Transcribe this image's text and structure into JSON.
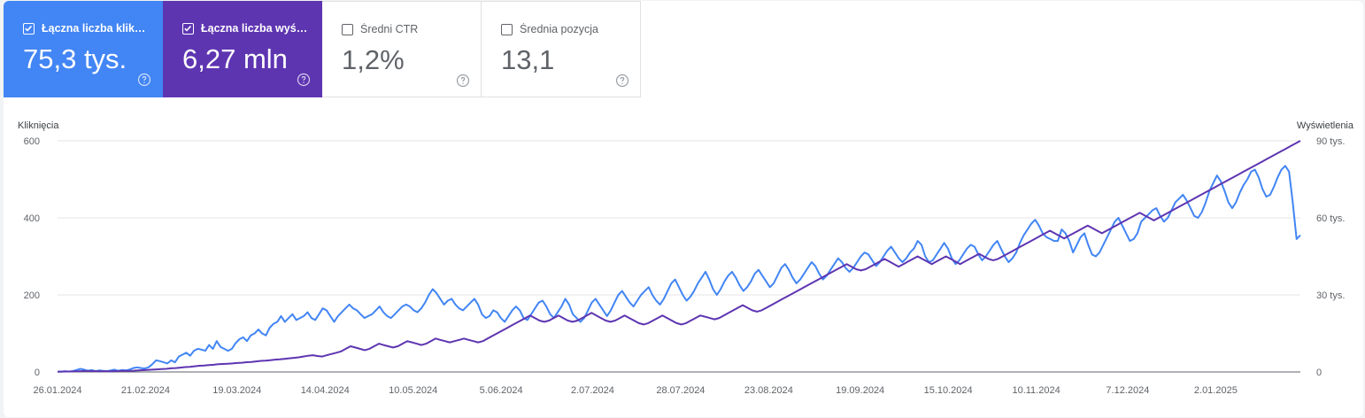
{
  "metrics": [
    {
      "id": "clicks",
      "label": "Łączna liczba kliknięć",
      "value": "75,3 tys.",
      "checked": true,
      "color": "#4285f4"
    },
    {
      "id": "impressions",
      "label": "Łączna liczba wyświetleń",
      "value": "6,27 mln",
      "checked": true,
      "color": "#5e35b1"
    },
    {
      "id": "ctr",
      "label": "Średni CTR",
      "value": "1,2%",
      "checked": false
    },
    {
      "id": "position",
      "label": "Średnia pozycja",
      "value": "13,1",
      "checked": false
    }
  ],
  "icons": {
    "checkbox": "checkbox-icon",
    "help": "help-circle-icon"
  },
  "chart_data": {
    "type": "line",
    "ylabel_left": "Kliknięcia",
    "ylabel_right": "Wyświetlenia",
    "y_left_ticks": [
      "0",
      "200",
      "400",
      "600"
    ],
    "y_right_ticks": [
      "0",
      "30 tys.",
      "60 tys.",
      "90 tys."
    ],
    "ylim_left": [
      0,
      600
    ],
    "ylim_right": [
      0,
      90000
    ],
    "x_ticks": [
      "26.01.2024",
      "21.02.2024",
      "19.03.2024",
      "14.04.2024",
      "10.05.2024",
      "5.06.2024",
      "2.07.2024",
      "28.07.2024",
      "23.08.2024",
      "19.09.2024",
      "15.10.2024",
      "10.11.2024",
      "7.12.2024",
      "2.01.2025"
    ],
    "x_start": "26.01.2024",
    "x_end": "27.01.2025",
    "grid": true,
    "series": [
      {
        "name": "Kliknięcia",
        "axis": "left",
        "color": "#4285f4",
        "values": [
          1,
          1,
          2,
          1,
          2,
          5,
          8,
          6,
          3,
          5,
          2,
          4,
          3,
          2,
          4,
          6,
          3,
          5,
          4,
          6,
          10,
          12,
          10,
          9,
          12,
          20,
          30,
          28,
          25,
          22,
          30,
          25,
          40,
          45,
          50,
          42,
          55,
          60,
          58,
          55,
          70,
          60,
          80,
          65,
          60,
          55,
          60,
          75,
          85,
          90,
          80,
          95,
          100,
          110,
          100,
          95,
          115,
          125,
          130,
          145,
          130,
          140,
          150,
          135,
          140,
          145,
          155,
          140,
          135,
          150,
          165,
          160,
          145,
          130,
          145,
          155,
          165,
          175,
          165,
          160,
          150,
          140,
          145,
          150,
          160,
          170,
          155,
          145,
          140,
          150,
          160,
          170,
          175,
          170,
          160,
          155,
          165,
          180,
          200,
          215,
          205,
          190,
          175,
          185,
          190,
          175,
          165,
          160,
          170,
          180,
          190,
          175,
          150,
          140,
          145,
          160,
          155,
          140,
          130,
          145,
          160,
          170,
          160,
          140,
          135,
          150,
          165,
          180,
          185,
          170,
          150,
          140,
          155,
          170,
          190,
          175,
          150,
          140,
          130,
          140,
          160,
          180,
          190,
          175,
          160,
          145,
          160,
          180,
          200,
          210,
          195,
          180,
          170,
          185,
          200,
          210,
          220,
          200,
          185,
          175,
          190,
          210,
          230,
          240,
          220,
          200,
          185,
          195,
          210,
          230,
          245,
          260,
          240,
          215,
          200,
          215,
          235,
          250,
          260,
          245,
          225,
          210,
          220,
          235,
          255,
          265,
          250,
          235,
          220,
          230,
          250,
          270,
          280,
          265,
          245,
          230,
          240,
          255,
          270,
          285,
          275,
          255,
          240,
          250,
          265,
          280,
          295,
          285,
          270,
          260,
          270,
          285,
          300,
          310,
          305,
          290,
          275,
          285,
          300,
          315,
          325,
          310,
          295,
          285,
          295,
          310,
          320,
          340,
          330,
          300,
          285,
          290,
          305,
          320,
          335,
          320,
          295,
          280,
          290,
          305,
          320,
          330,
          325,
          305,
          290,
          300,
          315,
          330,
          340,
          320,
          300,
          285,
          295,
          310,
          335,
          355,
          370,
          385,
          395,
          380,
          360,
          350,
          345,
          340,
          340,
          370,
          360,
          340,
          310,
          330,
          350,
          360,
          330,
          305,
          300,
          310,
          330,
          350,
          370,
          390,
          400,
          380,
          360,
          340,
          345,
          360,
          390,
          400,
          410,
          420,
          425,
          405,
          390,
          400,
          420,
          440,
          450,
          460,
          445,
          425,
          405,
          400,
          415,
          440,
          470,
          490,
          510,
          495,
          470,
          440,
          425,
          440,
          465,
          485,
          500,
          520,
          525,
          505,
          475,
          455,
          460,
          480,
          505,
          525,
          535,
          520,
          440,
          345,
          355
        ],
        "note_values": "approximate daily values read from the plot"
      },
      {
        "name": "Wyświetlenia",
        "axis": "right",
        "color": "#5e35b1",
        "values": [
          100,
          150,
          180,
          200,
          250,
          300,
          400,
          350,
          300,
          320,
          300,
          280,
          300,
          350,
          400,
          450,
          500,
          600,
          700,
          800,
          900,
          1000,
          1100,
          1200,
          1400,
          1500,
          1700,
          1900,
          2000,
          2200,
          2400,
          2500,
          2700,
          2800,
          3000,
          3100,
          3200,
          3300,
          3500,
          3600,
          3800,
          3900,
          4100,
          4300,
          4400,
          4600,
          4800,
          4900,
          5100,
          5300,
          5500,
          5700,
          6000,
          6300,
          6500,
          6200,
          6000,
          6500,
          7000,
          7500,
          8000,
          9000,
          10000,
          9500,
          9000,
          8500,
          9000,
          10000,
          11000,
          10500,
          10000,
          9500,
          10000,
          11000,
          12000,
          11500,
          11000,
          10500,
          11000,
          12000,
          13000,
          12500,
          12000,
          11500,
          12000,
          12500,
          13000,
          12500,
          12000,
          11500,
          12000,
          13000,
          14000,
          15000,
          16000,
          17000,
          18000,
          19000,
          20000,
          21000,
          22000,
          21000,
          20000,
          19500,
          20000,
          21000,
          22000,
          21000,
          20000,
          19500,
          20000,
          21000,
          22000,
          23000,
          22000,
          21000,
          20000,
          19500,
          20000,
          21000,
          22000,
          21000,
          20000,
          19000,
          18500,
          19000,
          20000,
          21000,
          22000,
          21000,
          20000,
          19000,
          18500,
          19000,
          20000,
          21000,
          22000,
          21500,
          21000,
          20500,
          21000,
          22000,
          23000,
          24000,
          25000,
          26000,
          25000,
          24000,
          23500,
          24000,
          25000,
          26000,
          27000,
          28000,
          29000,
          30000,
          31000,
          32000,
          33000,
          34000,
          35000,
          36000,
          37000,
          38000,
          39000,
          40000,
          41000,
          42000,
          41000,
          40000,
          39500,
          40000,
          41000,
          42000,
          43000,
          44000,
          43000,
          42000,
          41000,
          42000,
          43000,
          44000,
          45000,
          44000,
          43000,
          42000,
          43000,
          44000,
          45000,
          44000,
          43000,
          42000,
          43000,
          44000,
          45000,
          46000,
          45000,
          44000,
          43500,
          44000,
          45000,
          46000,
          47000,
          48000,
          49000,
          50000,
          51000,
          52000,
          53000,
          54000,
          55000,
          54000,
          53000,
          52000,
          53000,
          54000,
          55000,
          56000,
          57000,
          56000,
          55000,
          54000,
          55000,
          56000,
          57000,
          58000,
          59000,
          60000,
          61000,
          62000,
          61000,
          60000,
          59000,
          60000,
          61000,
          62000,
          63000,
          64000,
          65000,
          66000,
          67000,
          68000,
          69000,
          70000,
          71000,
          72000,
          73000,
          74000,
          75000,
          76000,
          77000,
          78000,
          79000,
          80000,
          81000,
          82000,
          83000,
          84000,
          85000,
          86000,
          87000,
          88000,
          89000,
          90000
        ],
        "note_values": "approximate daily values read from the plot"
      }
    ]
  }
}
